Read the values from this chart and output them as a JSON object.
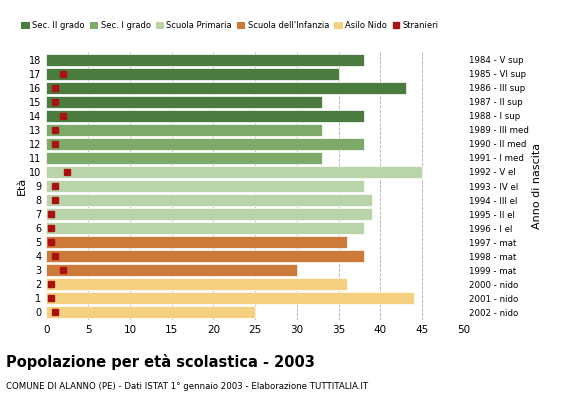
{
  "title": "Popolazione per età scolastica - 2003",
  "subtitle": "COMUNE DI ALANNO (PE) - Dati ISTAT 1° gennaio 2003 - Elaborazione TUTTITALIA.IT",
  "xlabel_left": "Età",
  "xlabel_right": "Anno di nascita",
  "ages": [
    18,
    17,
    16,
    15,
    14,
    13,
    12,
    11,
    10,
    9,
    8,
    7,
    6,
    5,
    4,
    3,
    2,
    1,
    0
  ],
  "years": [
    "1984 - V sup",
    "1985 - VI sup",
    "1986 - III sup",
    "1987 - II sup",
    "1988 - I sup",
    "1989 - III med",
    "1990 - II med",
    "1991 - I med",
    "1992 - V el",
    "1993 - IV el",
    "1994 - III el",
    "1995 - II el",
    "1996 - I el",
    "1997 - mat",
    "1998 - mat",
    "1999 - mat",
    "2000 - nido",
    "2001 - nido",
    "2002 - nido"
  ],
  "bar_values": [
    38,
    35,
    43,
    33,
    38,
    33,
    38,
    33,
    45,
    38,
    39,
    39,
    38,
    36,
    38,
    30,
    36,
    44,
    25
  ],
  "stranieri_values": [
    0,
    2,
    1,
    1,
    2,
    1,
    1,
    0,
    2.5,
    1,
    1,
    0.5,
    0.5,
    0.5,
    1,
    2,
    0.5,
    0.5,
    1
  ],
  "bar_colors": [
    "#4a7c3f",
    "#4a7c3f",
    "#4a7c3f",
    "#4a7c3f",
    "#4a7c3f",
    "#7daa68",
    "#7daa68",
    "#7daa68",
    "#b8d4a8",
    "#b8d4a8",
    "#b8d4a8",
    "#b8d4a8",
    "#b8d4a8",
    "#cc7a3a",
    "#cc7a3a",
    "#cc7a3a",
    "#f5d080",
    "#f5d080",
    "#f5d080"
  ],
  "legend_labels": [
    "Sec. II grado",
    "Sec. I grado",
    "Scuola Primaria",
    "Scuola dell'Infanzia",
    "Asilo Nido",
    "Stranieri"
  ],
  "legend_colors": [
    "#4a7c3f",
    "#7daa68",
    "#b8d4a8",
    "#cc7a3a",
    "#f5d080",
    "#aa1111"
  ],
  "stranieri_color": "#aa1111",
  "xlim": [
    0,
    50
  ],
  "xticks": [
    0,
    5,
    10,
    15,
    20,
    25,
    30,
    35,
    40,
    45,
    50
  ],
  "background_color": "#ffffff",
  "grid_color": "#aaaaaa"
}
